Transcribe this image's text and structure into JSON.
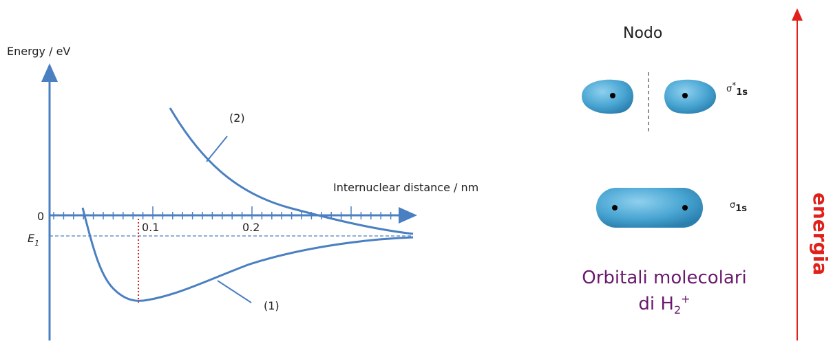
{
  "left_panel": {
    "y_axis_label": "Energy / eV",
    "x_axis_label": "Internuclear distance / nm",
    "zero_label": "0",
    "e1_label": {
      "main": "E",
      "sub": "1"
    },
    "x_tick_labels": [
      "0.1",
      "0.2"
    ],
    "curve_labels": [
      "(1)",
      "(2)"
    ]
  },
  "right_panel": {
    "node_label": "Nodo",
    "antibonding_label": {
      "main": "σ",
      "sup": "*",
      "sub": "1s"
    },
    "bonding_label": {
      "main": "σ",
      "sub": "1s"
    },
    "caption_line1": "Orbitali molecolari",
    "caption_line2": {
      "main": "di H",
      "sub": "2",
      "sup": "+"
    },
    "energy_label": "energia"
  }
}
